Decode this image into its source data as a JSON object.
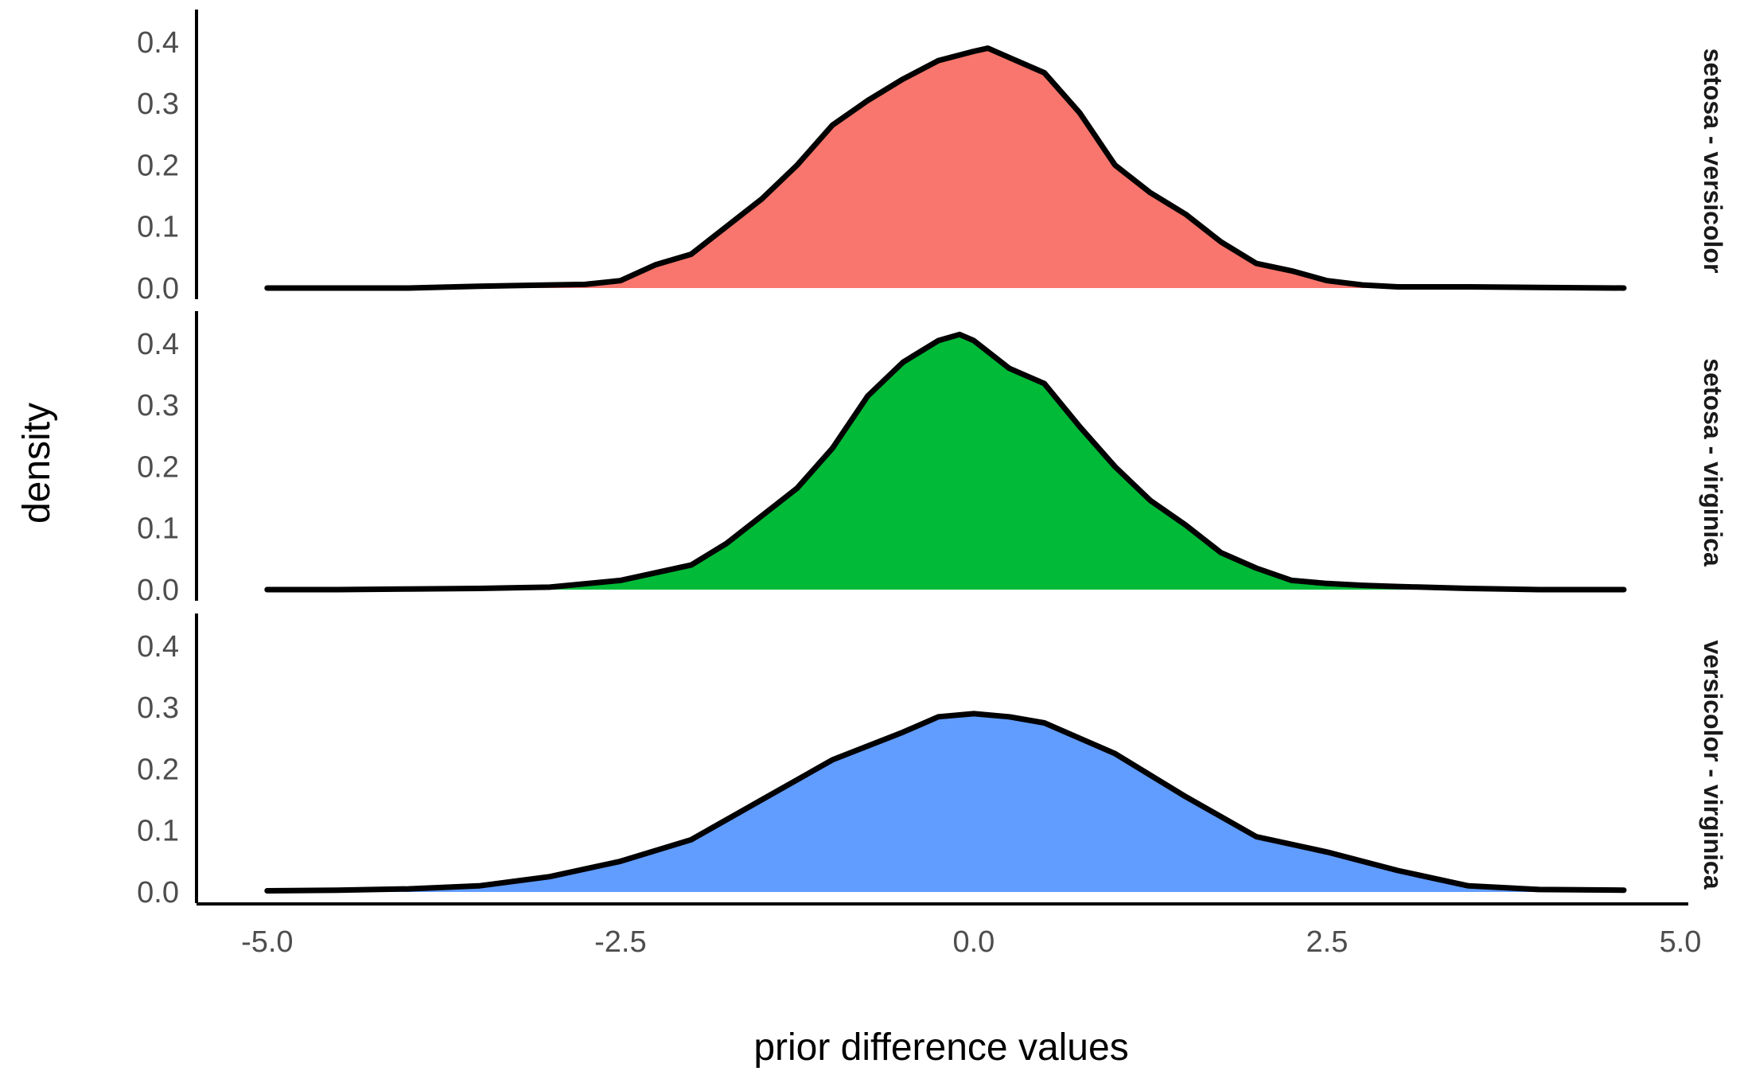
{
  "chart_data": {
    "type": "area",
    "xlabel": "prior difference values",
    "ylabel": "density",
    "xlim": [
      -5.5,
      5.0
    ],
    "ylim": [
      0,
      0.44
    ],
    "x_ticks": [
      -5.0,
      -2.5,
      0.0,
      2.5,
      5.0
    ],
    "x_tick_labels": [
      "-5.0",
      "-2.5",
      "0.0",
      "2.5",
      "5.0"
    ],
    "y_ticks": [
      0.0,
      0.1,
      0.2,
      0.3,
      0.4
    ],
    "y_tick_labels": [
      "0.0",
      "0.1",
      "0.2",
      "0.3",
      "0.4"
    ],
    "grid": false,
    "legend": "none",
    "facet_layout": "stacked rows, strip labels on right",
    "panels": [
      {
        "name": "setosa - versicolor",
        "color": "#F8766D",
        "x": [
          -5.0,
          -4.0,
          -3.5,
          -3.0,
          -2.75,
          -2.5,
          -2.25,
          -2.0,
          -1.75,
          -1.5,
          -1.25,
          -1.0,
          -0.75,
          -0.5,
          -0.25,
          0.0,
          0.1,
          0.25,
          0.5,
          0.75,
          1.0,
          1.25,
          1.5,
          1.75,
          2.0,
          2.25,
          2.5,
          2.75,
          3.0,
          3.5,
          4.0,
          4.6
        ],
        "y": [
          0.0,
          0.0,
          0.003,
          0.005,
          0.006,
          0.012,
          0.038,
          0.055,
          0.1,
          0.145,
          0.2,
          0.265,
          0.305,
          0.34,
          0.37,
          0.385,
          0.39,
          0.375,
          0.35,
          0.285,
          0.2,
          0.155,
          0.12,
          0.075,
          0.04,
          0.028,
          0.012,
          0.005,
          0.002,
          0.002,
          0.001,
          0.0
        ]
      },
      {
        "name": "setosa - virginica",
        "color": "#00BA38",
        "x": [
          -5.0,
          -4.5,
          -4.0,
          -3.5,
          -3.0,
          -2.5,
          -2.0,
          -1.75,
          -1.5,
          -1.25,
          -1.0,
          -0.75,
          -0.5,
          -0.25,
          -0.1,
          0.0,
          0.25,
          0.5,
          0.75,
          1.0,
          1.25,
          1.5,
          1.75,
          2.0,
          2.25,
          2.5,
          2.75,
          3.0,
          3.5,
          4.0,
          4.6
        ],
        "y": [
          0.0,
          0.0,
          0.001,
          0.002,
          0.004,
          0.015,
          0.04,
          0.075,
          0.12,
          0.165,
          0.23,
          0.315,
          0.37,
          0.405,
          0.415,
          0.405,
          0.36,
          0.335,
          0.265,
          0.2,
          0.145,
          0.105,
          0.06,
          0.035,
          0.015,
          0.01,
          0.007,
          0.005,
          0.002,
          0.0,
          0.0
        ]
      },
      {
        "name": "versicolor - virginica",
        "color": "#619CFF",
        "x": [
          -5.0,
          -4.5,
          -4.0,
          -3.5,
          -3.0,
          -2.5,
          -2.0,
          -1.5,
          -1.0,
          -0.5,
          -0.25,
          0.0,
          0.25,
          0.5,
          0.75,
          1.0,
          1.5,
          2.0,
          2.5,
          3.0,
          3.5,
          4.0,
          4.6
        ],
        "y": [
          0.002,
          0.003,
          0.005,
          0.01,
          0.025,
          0.05,
          0.085,
          0.15,
          0.215,
          0.26,
          0.285,
          0.29,
          0.285,
          0.275,
          0.25,
          0.225,
          0.155,
          0.09,
          0.065,
          0.035,
          0.01,
          0.004,
          0.003
        ]
      }
    ]
  }
}
